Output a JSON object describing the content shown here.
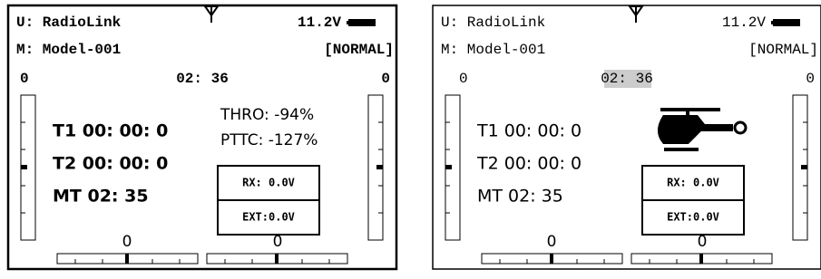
{
  "screens": [
    {
      "user": "U: RadioLink",
      "battery": "11.2V",
      "model": "M: Model-001",
      "mode": "[NORMAL]",
      "left_value": "0",
      "timer": "02: 36",
      "right_value": "0",
      "t1": "T1 00: 00: 0",
      "t2": "T2 00: 00: 0",
      "mt": "MT 02: 35",
      "thro": "THRO: -94%",
      "pttc": "PTTC: -127%",
      "rx": "RX: 0.0V",
      "ext": "EXT:0.0V",
      "trim_left": "0",
      "trim_right": "0"
    },
    {
      "user": "U: RadioLink",
      "battery": "11.2V",
      "model": "M: Model-001",
      "mode": "[NORMAL]",
      "left_value": "0",
      "timer": "02: 36",
      "right_value": "0",
      "t1": "T1 00: 00: 0",
      "t2": "T2 00: 00: 0",
      "mt": "MT 02: 35",
      "rx": "RX: 0.0V",
      "ext": "EXT:0.0V",
      "trim_left": "0",
      "trim_right": "0"
    }
  ]
}
